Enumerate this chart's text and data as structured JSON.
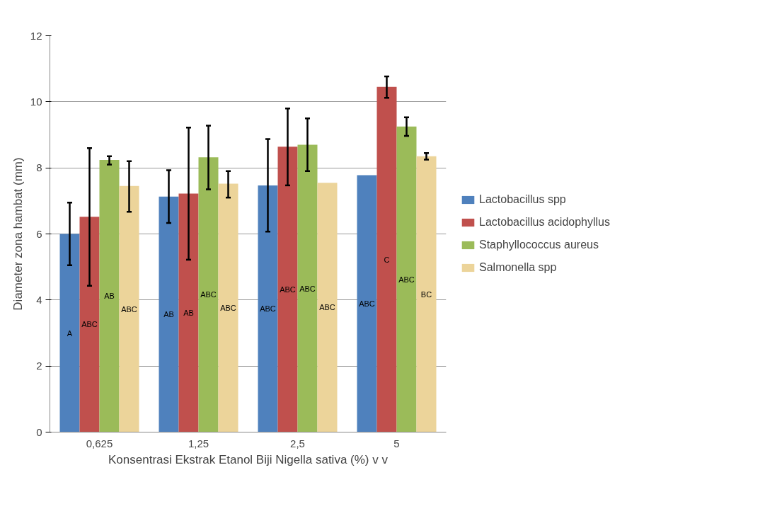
{
  "chart_data": {
    "type": "bar",
    "xlabel": "Konsentrasi Ekstrak Etanol Biji Nigella sativa (%) v v",
    "ylabel": "Diameter zona hambat (mm)",
    "categories": [
      "0,625",
      "1,25",
      "2,5",
      "5"
    ],
    "series": [
      {
        "name": "Lactobacillus spp",
        "color": "#4f81bd",
        "values": [
          6.0,
          7.13,
          7.47,
          7.78
        ],
        "errors": [
          [
            5.05,
            6.95
          ],
          [
            6.33,
            7.93
          ],
          [
            6.07,
            8.87
          ],
          null
        ],
        "value_labels": [
          "A",
          "AB",
          "ABC",
          "ABC"
        ]
      },
      {
        "name": "Lactobacillus acidophyllus",
        "color": "#c0504d",
        "values": [
          6.52,
          7.22,
          8.64,
          10.45
        ],
        "errors": [
          [
            4.43,
            8.6
          ],
          [
            5.22,
            9.22
          ],
          [
            7.47,
            9.8
          ],
          [
            10.12,
            10.77
          ]
        ],
        "value_labels": [
          "ABC",
          "AB",
          "ABC",
          "C"
        ]
      },
      {
        "name": "Staphyllococcus aureus",
        "color": "#9bbb59",
        "values": [
          8.24,
          8.32,
          8.7,
          9.25
        ],
        "errors": [
          [
            8.1,
            8.35
          ],
          [
            7.35,
            9.28
          ],
          [
            7.9,
            9.5
          ],
          [
            8.97,
            9.53
          ]
        ],
        "value_labels": [
          "AB",
          "ABC",
          "ABC",
          "ABC"
        ]
      },
      {
        "name": "Salmonella spp",
        "color": "#ecd49a",
        "values": [
          7.45,
          7.52,
          7.55,
          8.35
        ],
        "errors": [
          [
            6.67,
            8.2
          ],
          [
            7.1,
            7.9
          ],
          null,
          [
            8.25,
            8.45
          ]
        ],
        "value_labels": [
          "ABC",
          "ABC",
          "ABC",
          "BC"
        ]
      }
    ],
    "ylim": [
      0,
      12
    ],
    "yticks": [
      0,
      2,
      4,
      6,
      8,
      10,
      12
    ],
    "grid": "y",
    "legend": "right"
  }
}
